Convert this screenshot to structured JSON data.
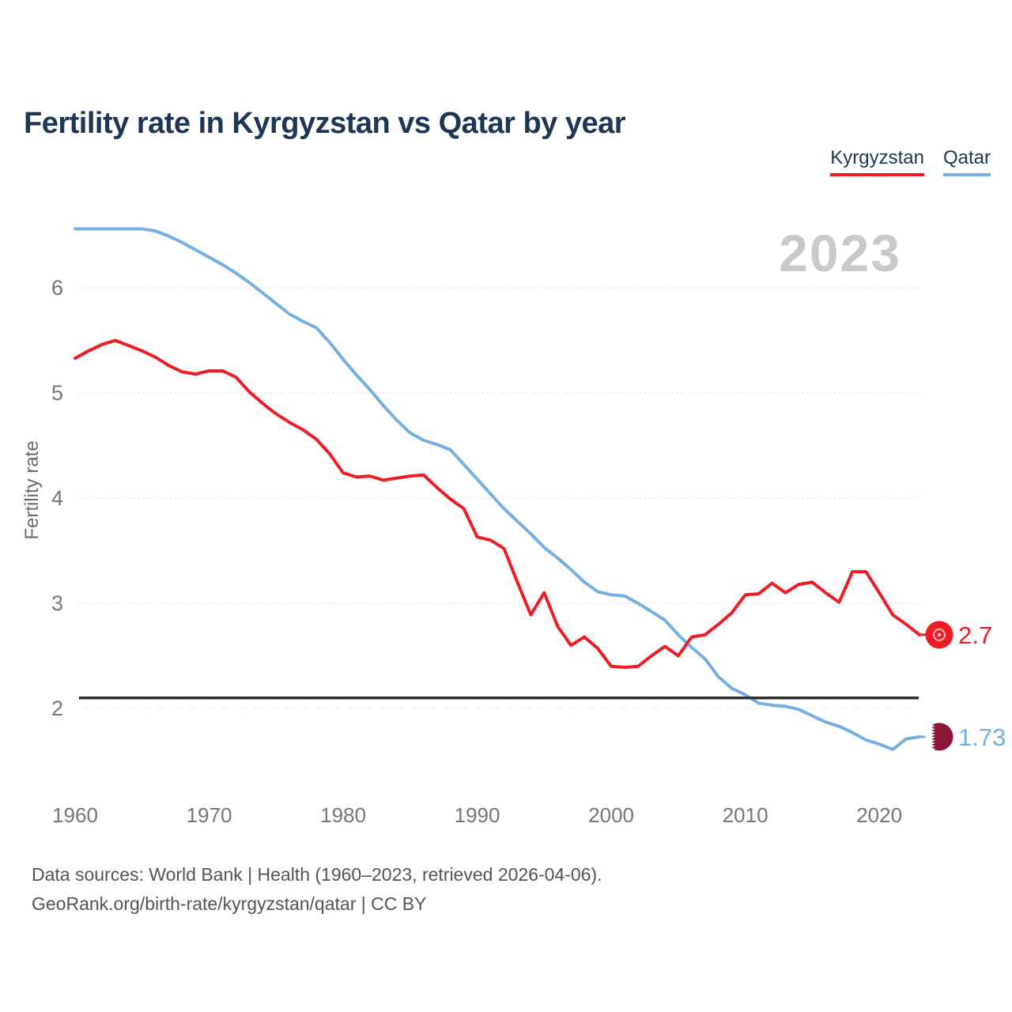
{
  "header": {
    "title": "Fertility rate in Kyrgyzstan vs Qatar by year"
  },
  "legend": {
    "items": [
      {
        "label": "Kyrgyzstan",
        "color": "#ee1c25"
      },
      {
        "label": "Qatar",
        "color": "#76b0e3"
      }
    ]
  },
  "watermark": "2023",
  "chart_data": {
    "type": "line",
    "title": "Fertility rate in Kyrgyzstan vs Qatar by year",
    "xlabel": "",
    "ylabel": "Fertility rate",
    "grid": "horizontal-dotted",
    "legend_position": "top-right",
    "xlim": [
      1960,
      2023
    ],
    "ylim": [
      1.5,
      6.7
    ],
    "xticks": [
      1960,
      1970,
      1980,
      1990,
      2000,
      2010,
      2020
    ],
    "yticks": [
      2,
      3,
      4,
      5,
      6
    ],
    "reference_line": {
      "value": 2.1,
      "color": "#2e2e2e"
    },
    "x": [
      1960,
      1961,
      1962,
      1963,
      1964,
      1965,
      1966,
      1967,
      1968,
      1969,
      1970,
      1971,
      1972,
      1973,
      1974,
      1975,
      1976,
      1977,
      1978,
      1979,
      1980,
      1981,
      1982,
      1983,
      1984,
      1985,
      1986,
      1987,
      1988,
      1989,
      1990,
      1991,
      1992,
      1993,
      1994,
      1995,
      1996,
      1997,
      1998,
      1999,
      2000,
      2001,
      2002,
      2003,
      2004,
      2005,
      2006,
      2007,
      2008,
      2009,
      2010,
      2011,
      2012,
      2013,
      2014,
      2015,
      2016,
      2017,
      2018,
      2019,
      2020,
      2021,
      2022,
      2023
    ],
    "series": [
      {
        "name": "Kyrgyzstan",
        "color": "#ee1c25",
        "end_label": "2.7",
        "values": [
          5.33,
          5.4,
          5.46,
          5.5,
          5.45,
          5.4,
          5.34,
          5.26,
          5.2,
          5.18,
          5.21,
          5.21,
          5.15,
          5.01,
          4.9,
          4.8,
          4.72,
          4.65,
          4.56,
          4.42,
          4.24,
          4.2,
          4.21,
          4.17,
          4.19,
          4.21,
          4.22,
          4.1,
          3.99,
          3.9,
          3.63,
          3.6,
          3.52,
          3.2,
          2.89,
          3.1,
          2.78,
          2.6,
          2.68,
          2.57,
          2.4,
          2.39,
          2.4,
          2.5,
          2.59,
          2.5,
          2.68,
          2.7,
          2.8,
          2.91,
          3.08,
          3.09,
          3.19,
          3.1,
          3.18,
          3.2,
          3.1,
          3.01,
          3.3,
          3.3,
          3.1,
          2.89,
          2.8,
          2.7
        ]
      },
      {
        "name": "Qatar",
        "color": "#76b0e3",
        "end_label": "1.73",
        "values": [
          6.56,
          6.56,
          6.56,
          6.56,
          6.56,
          6.56,
          6.54,
          6.49,
          6.43,
          6.36,
          6.29,
          6.22,
          6.14,
          6.05,
          5.95,
          5.85,
          5.75,
          5.68,
          5.62,
          5.48,
          5.32,
          5.17,
          5.03,
          4.88,
          4.74,
          4.62,
          4.55,
          4.51,
          4.46,
          4.32,
          4.18,
          4.04,
          3.9,
          3.78,
          3.66,
          3.53,
          3.43,
          3.32,
          3.2,
          3.11,
          3.08,
          3.07,
          3.0,
          2.92,
          2.84,
          2.7,
          2.58,
          2.47,
          2.3,
          2.19,
          2.13,
          2.05,
          2.03,
          2.02,
          1.99,
          1.93,
          1.87,
          1.83,
          1.77,
          1.7,
          1.66,
          1.61,
          1.71,
          1.73
        ]
      }
    ]
  },
  "footer": {
    "line1": "Data sources: World Bank | Health (1960–2023, retrieved 2026-04-06).",
    "line2": "GeoRank.org/birth-rate/kyrgyzstan/qatar | CC BY"
  }
}
